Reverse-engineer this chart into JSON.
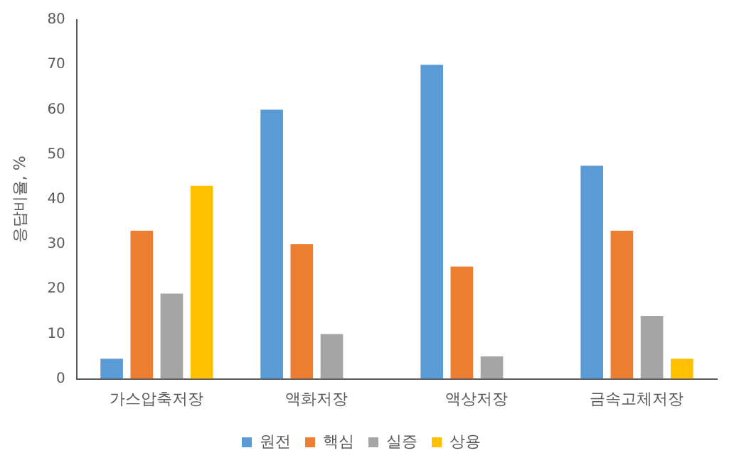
{
  "chart_data": {
    "type": "bar",
    "ylabel": "응답비율, %",
    "categories": [
      "가스압축저장",
      "액화저장",
      "액상저장",
      "금속고체저장"
    ],
    "series": [
      {
        "name": "원전",
        "color": "#5b9bd5",
        "values": [
          4.5,
          60,
          70,
          47.5
        ]
      },
      {
        "name": "핵심",
        "color": "#ed7d31",
        "values": [
          33,
          30,
          25,
          33
        ]
      },
      {
        "name": "실증",
        "color": "#a5a5a5",
        "values": [
          19,
          10,
          5,
          14
        ]
      },
      {
        "name": "상용",
        "color": "#ffc000",
        "values": [
          43,
          null,
          null,
          4.5
        ]
      }
    ],
    "ylim": [
      0,
      80
    ],
    "yticks": [
      0,
      10,
      20,
      30,
      40,
      50,
      60,
      70,
      80
    ],
    "grid": false,
    "legend": "bottom"
  }
}
